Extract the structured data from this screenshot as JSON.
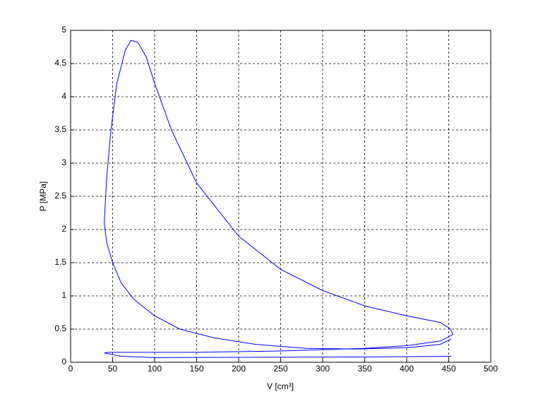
{
  "chart_data": {
    "type": "line",
    "xlabel": "V [cm³]",
    "ylabel": "P [MPa]",
    "xlim": [
      0,
      500
    ],
    "xticks": [
      0,
      50,
      100,
      150,
      200,
      250,
      300,
      350,
      400,
      450,
      500
    ],
    "ylim": [
      0,
      5
    ],
    "yticks": [
      0,
      0.5,
      1,
      1.5,
      2,
      2.5,
      3,
      3.5,
      4,
      4.5,
      5
    ],
    "grid": true,
    "series": [
      {
        "color": "#0000ff",
        "x": [
          453,
          350,
          200,
          100,
          60,
          40,
          45,
          150,
          250,
          300,
          350,
          400,
          440,
          455,
          452,
          440,
          400,
          350,
          300,
          250,
          200,
          150,
          120,
          100,
          90,
          80,
          72,
          65,
          55,
          48,
          43,
          40,
          43,
          50,
          60,
          75,
          100,
          130,
          170,
          220,
          280,
          340,
          400,
          440,
          453
        ],
        "values": [
          0.09,
          0.08,
          0.075,
          0.07,
          0.09,
          0.14,
          0.15,
          0.15,
          0.17,
          0.19,
          0.21,
          0.25,
          0.32,
          0.42,
          0.5,
          0.6,
          0.7,
          0.85,
          1.08,
          1.4,
          1.9,
          2.7,
          3.5,
          4.2,
          4.6,
          4.82,
          4.85,
          4.7,
          4.2,
          3.5,
          2.8,
          2.1,
          1.8,
          1.5,
          1.2,
          0.95,
          0.7,
          0.5,
          0.37,
          0.27,
          0.21,
          0.2,
          0.22,
          0.27,
          0.35
        ]
      }
    ]
  }
}
